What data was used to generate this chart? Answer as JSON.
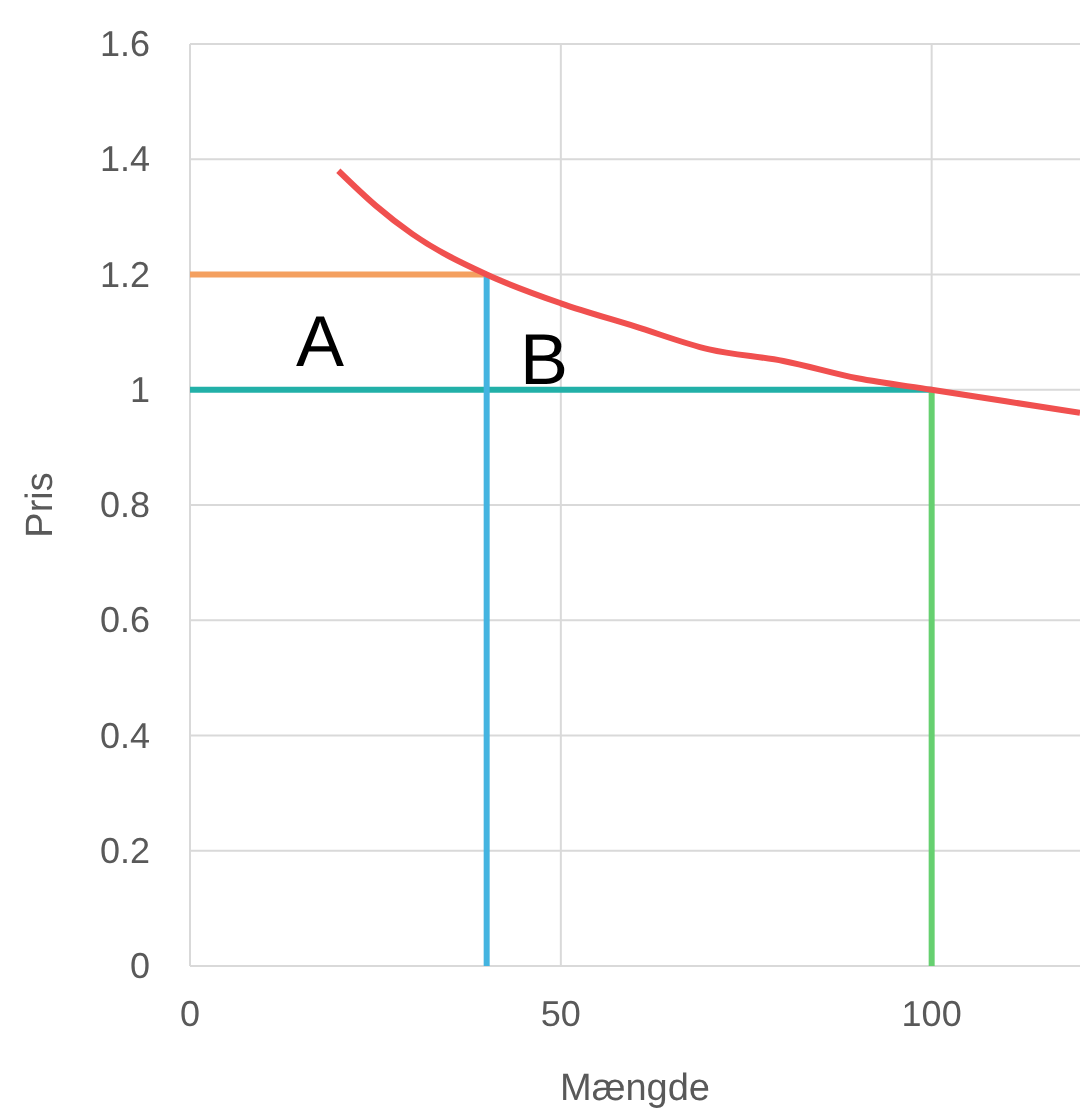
{
  "chart_data": {
    "type": "line",
    "xlabel": "Mængde",
    "ylabel": "Pris",
    "xlim": [
      0,
      120
    ],
    "xticks": [
      0,
      50,
      100
    ],
    "ylim": [
      0,
      1.6
    ],
    "yticks": [
      0,
      0.2,
      0.4,
      0.6,
      0.8,
      1,
      1.2,
      1.4,
      1.6
    ],
    "grid": true,
    "marker": "none",
    "line_style": "solid",
    "series": [
      {
        "color": "#f4a060",
        "x": [
          0,
          40
        ],
        "values": [
          1.2,
          1.2
        ]
      },
      {
        "color": "#22b0a8",
        "x": [
          0,
          100
        ],
        "values": [
          1,
          1
        ]
      },
      {
        "color": "#44b4e0",
        "x": [
          40,
          40
        ],
        "values": [
          0,
          1.2
        ]
      },
      {
        "color": "#66d070",
        "x": [
          100,
          100
        ],
        "values": [
          0,
          1
        ]
      },
      {
        "color": "#f0504f",
        "x": [
          20,
          25,
          30,
          40,
          50,
          60,
          70,
          80,
          90,
          100,
          110,
          120
        ],
        "values": [
          1.38,
          1.32,
          1.27,
          1.2,
          1.15,
          1.11,
          1.07,
          1.05,
          1.02,
          1,
          0.98,
          0.96
        ]
      }
    ],
    "annotations": [
      "A",
      "B"
    ]
  }
}
